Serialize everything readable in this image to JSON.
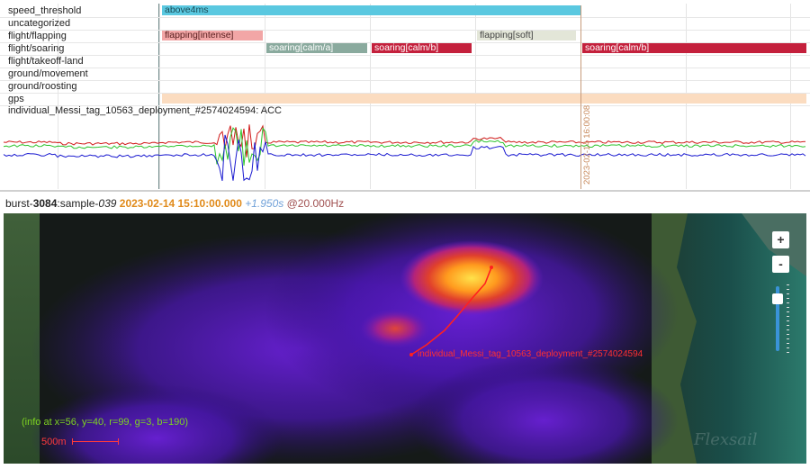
{
  "timeline": {
    "rows": [
      {
        "label": "speed_threshold"
      },
      {
        "label": "uncategorized"
      },
      {
        "label": "flight/flapping"
      },
      {
        "label": "flight/soaring"
      },
      {
        "label": "flight/takeoff-land"
      },
      {
        "label": "ground/movement"
      },
      {
        "label": "ground/roosting"
      },
      {
        "label": "gps"
      }
    ],
    "segments": [
      {
        "row": 0,
        "label": "above4ms",
        "color": "#5ac8e0",
        "text_color": "#1a4a55"
      },
      {
        "row": 2,
        "label": "flapping[intense]",
        "color": "#f2a6a6",
        "text_color": "#5a2020"
      },
      {
        "row": 2,
        "label": "flapping[soft]",
        "color": "#e3e6d8",
        "text_color": "#444"
      },
      {
        "row": 3,
        "label": "soaring[calm/a]",
        "color": "#8aaa9e",
        "text_color": "#ffffff"
      },
      {
        "row": 3,
        "label": "soaring[calm/b]",
        "color": "#c4203c",
        "text_color": "#ffffff"
      },
      {
        "row": 3,
        "label": "soaring[calm/b]",
        "color": "#c4203c",
        "text_color": "#ffffff"
      },
      {
        "row": 7,
        "label": "",
        "color": "#fbdcc0",
        "text_color": "#444"
      }
    ],
    "acc_title": "individual_Messi_tag_10563_deployment_#2574024594: ACC",
    "cursor_label": "2023-02-14 16:00:08",
    "acc_colors": {
      "x": "#d01a1a",
      "y": "#2ec42e",
      "z": "#1a1ad0"
    }
  },
  "status": {
    "prefix": "burst-",
    "burst": "3084",
    "sample_prefix": ":sample-",
    "sample": "039",
    "timestamp": "2023-02-14 15:10:00.000",
    "duration": "+1.950s",
    "frequency": "@20.000Hz"
  },
  "map": {
    "zoom_in": "+",
    "zoom_out": "-",
    "info": "(info at x=56, y=40, r=99, g=3, b=190)",
    "scale": "500m",
    "track_label": "individual_Messi_tag_10563_deployment_#2574024594",
    "watermark": "Flexsail",
    "track_color": "#ff2020"
  }
}
